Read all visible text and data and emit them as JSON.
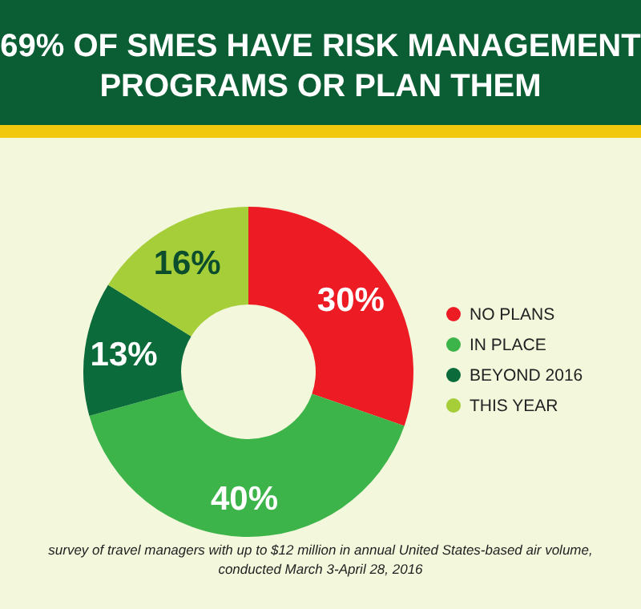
{
  "chart_data": {
    "type": "donut",
    "title": "69% OF SMES HAVE RISK MANAGEMENT PROGRAMS OR PLAN THEM",
    "categories": [
      "NO PLANS",
      "IN PLACE",
      "BEYOND 2016",
      "THIS YEAR"
    ],
    "values": [
      30,
      40,
      13,
      16
    ],
    "colors": [
      "#ed1c24",
      "#3cb44a",
      "#0b6b3a",
      "#a6ce39"
    ],
    "value_labels": [
      "30%",
      "40%",
      "13%",
      "16%"
    ],
    "legend": "right",
    "annotations": [
      "survey of travel managers with up to $12 million in annual United States-based air volume,",
      "conducted March 3-April 28, 2016"
    ]
  }
}
